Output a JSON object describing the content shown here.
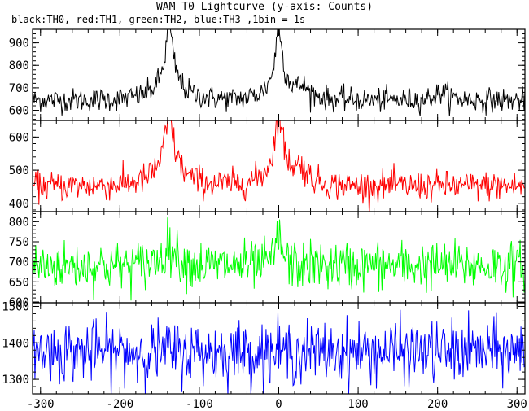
{
  "title": "WAM T0 Lightcurve (y-axis: Counts)",
  "subtitle": "black:TH0, red:TH1, green:TH2, blue:TH3 ,1bin = 1s",
  "chart_data": {
    "type": "line",
    "x_range": [
      -310,
      310
    ],
    "x_ticks": [
      -300,
      -200,
      -100,
      0,
      100,
      200,
      300
    ],
    "panels": [
      {
        "series": "TH0",
        "color": "#000000",
        "y_range": [
          555,
          960
        ],
        "y_ticks": [
          600,
          700,
          800,
          900
        ],
        "baseline": 645,
        "noise": 26,
        "peaks": [
          {
            "center": -138,
            "height": 270,
            "width": 6
          },
          {
            "center": -138,
            "height": 110,
            "width": 22
          },
          {
            "center": 0,
            "height": 270,
            "width": 5
          },
          {
            "center": 0,
            "height": 110,
            "width": 18
          },
          {
            "center": 30,
            "height": 50,
            "width": 15
          },
          {
            "center": 205,
            "height": 40,
            "width": 12
          }
        ]
      },
      {
        "series": "TH1",
        "color": "#ff0000",
        "y_range": [
          375,
          650
        ],
        "y_ticks": [
          400,
          500,
          600
        ],
        "baseline": 452,
        "noise": 22,
        "peaks": [
          {
            "center": -138,
            "height": 160,
            "width": 8
          },
          {
            "center": -138,
            "height": 70,
            "width": 24
          },
          {
            "center": 0,
            "height": 170,
            "width": 6
          },
          {
            "center": 0,
            "height": 80,
            "width": 20
          },
          {
            "center": 28,
            "height": 50,
            "width": 12
          }
        ]
      },
      {
        "series": "TH2",
        "color": "#00ff00",
        "y_range": [
          598,
          825
        ],
        "y_ticks": [
          600,
          650,
          700,
          750,
          800
        ],
        "baseline": 690,
        "noise": 30,
        "peaks": [
          {
            "center": -138,
            "height": 55,
            "width": 12
          },
          {
            "center": 0,
            "height": 80,
            "width": 6
          }
        ]
      },
      {
        "series": "TH3",
        "color": "#0000ff",
        "y_range": [
          1260,
          1510
        ],
        "y_ticks": [
          1300,
          1400,
          1500
        ],
        "baseline": 1375,
        "noise": 42,
        "peaks": []
      }
    ]
  }
}
